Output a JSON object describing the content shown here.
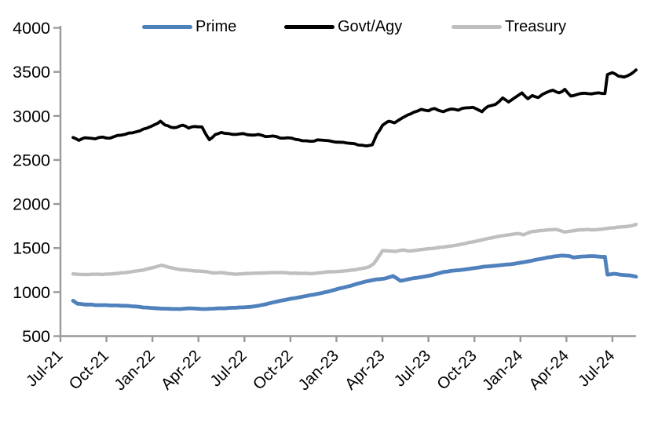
{
  "chart_data": {
    "type": "line",
    "title": "",
    "xlabel": "",
    "ylabel": "",
    "x_unit": "month index from Jul-21 (0) to Sep-24 (38), quarterly ticks",
    "x_tick_labels": [
      "Jul-21",
      "Oct-21",
      "Jan-22",
      "Apr-22",
      "Jul-22",
      "Oct-22",
      "Jan-23",
      "Apr-23",
      "Jul-23",
      "Oct-23",
      "Jan-24",
      "Apr-24",
      "Jul-24"
    ],
    "y_axis": {
      "min": 500,
      "max": 4000,
      "step": 500,
      "tick_values": [
        4000,
        3500,
        3000,
        2500,
        2000,
        1500,
        1000,
        500
      ],
      "tick_labels": [
        "4000",
        "3500",
        "3000",
        "2500",
        "2000",
        "1500",
        "1000",
        "500"
      ]
    },
    "layout": {
      "legend_position": "top",
      "grid": false,
      "axis_color": "#9a9a9a",
      "background": "#ffffff"
    },
    "series": [
      {
        "name": "Prime",
        "color": "#4f81bd",
        "stroke_width": 4.8,
        "noise": 3.2,
        "points": [
          [
            0,
            902
          ],
          [
            0.3,
            868
          ],
          [
            1,
            858
          ],
          [
            1.5,
            852
          ],
          [
            2,
            852
          ],
          [
            2.5,
            848
          ],
          [
            3,
            848
          ],
          [
            3.5,
            845
          ],
          [
            4,
            838
          ],
          [
            4.5,
            832
          ],
          [
            5,
            824
          ],
          [
            5.5,
            818
          ],
          [
            6,
            812
          ],
          [
            6.5,
            810
          ],
          [
            7,
            808
          ],
          [
            7.5,
            812
          ],
          [
            8,
            815
          ],
          [
            8.5,
            810
          ],
          [
            9,
            808
          ],
          [
            9.5,
            812
          ],
          [
            10,
            816
          ],
          [
            10.5,
            820
          ],
          [
            11,
            822
          ],
          [
            11.5,
            826
          ],
          [
            12,
            832
          ],
          [
            12.5,
            845
          ],
          [
            13,
            862
          ],
          [
            13.5,
            882
          ],
          [
            14,
            902
          ],
          [
            14.5,
            918
          ],
          [
            15,
            932
          ],
          [
            15.5,
            948
          ],
          [
            16,
            965
          ],
          [
            16.5,
            980
          ],
          [
            17,
            998
          ],
          [
            17.5,
            1018
          ],
          [
            18,
            1042
          ],
          [
            18.5,
            1062
          ],
          [
            19,
            1085
          ],
          [
            19.5,
            1108
          ],
          [
            20,
            1128
          ],
          [
            20.5,
            1145
          ],
          [
            21,
            1152
          ],
          [
            21.6,
            1182
          ],
          [
            22.1,
            1128
          ],
          [
            22.6,
            1145
          ],
          [
            23,
            1158
          ],
          [
            23.5,
            1170
          ],
          [
            24,
            1185
          ],
          [
            24.5,
            1205
          ],
          [
            25,
            1228
          ],
          [
            25.5,
            1240
          ],
          [
            26,
            1248
          ],
          [
            26.5,
            1258
          ],
          [
            27,
            1270
          ],
          [
            27.5,
            1282
          ],
          [
            28,
            1292
          ],
          [
            28.5,
            1300
          ],
          [
            29,
            1308
          ],
          [
            29.5,
            1315
          ],
          [
            30,
            1328
          ],
          [
            30.5,
            1342
          ],
          [
            31,
            1358
          ],
          [
            31.5,
            1375
          ],
          [
            32,
            1392
          ],
          [
            32.5,
            1405
          ],
          [
            33,
            1415
          ],
          [
            33.5,
            1408
          ],
          [
            33.8,
            1392
          ],
          [
            34.2,
            1400
          ],
          [
            34.6,
            1405
          ],
          [
            35,
            1408
          ],
          [
            35.5,
            1402
          ],
          [
            35.9,
            1400
          ],
          [
            36.07,
            1198
          ],
          [
            36.5,
            1208
          ],
          [
            36.9,
            1198
          ],
          [
            37.3,
            1192
          ],
          [
            37.7,
            1186
          ],
          [
            38,
            1175
          ]
        ]
      },
      {
        "name": "Govt/Agy",
        "color": "#000000",
        "stroke_width": 3.8,
        "noise": 8,
        "points": [
          [
            0,
            2755
          ],
          [
            0.4,
            2722
          ],
          [
            0.8,
            2752
          ],
          [
            1.5,
            2740
          ],
          [
            2,
            2760
          ],
          [
            2.5,
            2748
          ],
          [
            3,
            2778
          ],
          [
            3.5,
            2790
          ],
          [
            4,
            2808
          ],
          [
            4.5,
            2830
          ],
          [
            5,
            2862
          ],
          [
            5.5,
            2900
          ],
          [
            5.9,
            2940
          ],
          [
            6.2,
            2898
          ],
          [
            6.6,
            2872
          ],
          [
            7,
            2870
          ],
          [
            7.4,
            2895
          ],
          [
            7.8,
            2862
          ],
          [
            8.2,
            2880
          ],
          [
            8.7,
            2875
          ],
          [
            9.2,
            2730
          ],
          [
            9.6,
            2788
          ],
          [
            10,
            2812
          ],
          [
            10.5,
            2800
          ],
          [
            11,
            2790
          ],
          [
            11.5,
            2800
          ],
          [
            12,
            2783
          ],
          [
            12.5,
            2790
          ],
          [
            13,
            2765
          ],
          [
            13.5,
            2772
          ],
          [
            14,
            2748
          ],
          [
            14.5,
            2752
          ],
          [
            15,
            2735
          ],
          [
            15.5,
            2718
          ],
          [
            16,
            2712
          ],
          [
            16.5,
            2728
          ],
          [
            17,
            2722
          ],
          [
            17.5,
            2710
          ],
          [
            18,
            2702
          ],
          [
            18.5,
            2692
          ],
          [
            19,
            2685
          ],
          [
            19.5,
            2668
          ],
          [
            19.8,
            2660
          ],
          [
            20.2,
            2672
          ],
          [
            20.5,
            2790
          ],
          [
            20.9,
            2895
          ],
          [
            21.3,
            2940
          ],
          [
            21.7,
            2922
          ],
          [
            22.2,
            2975
          ],
          [
            22.6,
            3012
          ],
          [
            23,
            3042
          ],
          [
            23.5,
            3075
          ],
          [
            24,
            3058
          ],
          [
            24.4,
            3085
          ],
          [
            25,
            3048
          ],
          [
            25.5,
            3078
          ],
          [
            26,
            3065
          ],
          [
            26.5,
            3092
          ],
          [
            27,
            3098
          ],
          [
            27.6,
            3048
          ],
          [
            28,
            3108
          ],
          [
            28.5,
            3130
          ],
          [
            29,
            3205
          ],
          [
            29.4,
            3158
          ],
          [
            30,
            3228
          ],
          [
            30.3,
            3262
          ],
          [
            30.7,
            3195
          ],
          [
            31,
            3232
          ],
          [
            31.4,
            3208
          ],
          [
            32,
            3270
          ],
          [
            32.4,
            3292
          ],
          [
            32.8,
            3262
          ],
          [
            33.2,
            3302
          ],
          [
            33.6,
            3225
          ],
          [
            34,
            3242
          ],
          [
            34.5,
            3258
          ],
          [
            35,
            3250
          ],
          [
            35.5,
            3262
          ],
          [
            35.9,
            3255
          ],
          [
            36.07,
            3470
          ],
          [
            36.4,
            3492
          ],
          [
            36.8,
            3452
          ],
          [
            37.2,
            3442
          ],
          [
            37.6,
            3470
          ],
          [
            38,
            3522
          ]
        ]
      },
      {
        "name": "Treasury",
        "color": "#bfbfbf",
        "stroke_width": 4.4,
        "noise": 4,
        "points": [
          [
            0,
            1206
          ],
          [
            0.5,
            1200
          ],
          [
            1,
            1198
          ],
          [
            1.5,
            1202
          ],
          [
            2,
            1200
          ],
          [
            2.5,
            1205
          ],
          [
            3,
            1212
          ],
          [
            3.5,
            1220
          ],
          [
            4,
            1232
          ],
          [
            4.5,
            1245
          ],
          [
            5,
            1262
          ],
          [
            5.5,
            1282
          ],
          [
            6,
            1305
          ],
          [
            6.4,
            1285
          ],
          [
            7,
            1262
          ],
          [
            7.5,
            1252
          ],
          [
            8,
            1245
          ],
          [
            8.5,
            1238
          ],
          [
            9,
            1232
          ],
          [
            9.4,
            1218
          ],
          [
            10,
            1222
          ],
          [
            10.5,
            1210
          ],
          [
            11,
            1202
          ],
          [
            11.5,
            1208
          ],
          [
            12,
            1212
          ],
          [
            12.5,
            1215
          ],
          [
            13,
            1218
          ],
          [
            13.5,
            1222
          ],
          [
            14,
            1222
          ],
          [
            14.5,
            1218
          ],
          [
            15,
            1215
          ],
          [
            15.5,
            1212
          ],
          [
            16,
            1210
          ],
          [
            16.5,
            1218
          ],
          [
            17,
            1226
          ],
          [
            17.5,
            1230
          ],
          [
            18,
            1236
          ],
          [
            18.5,
            1242
          ],
          [
            19,
            1252
          ],
          [
            19.5,
            1268
          ],
          [
            20,
            1288
          ],
          [
            20.3,
            1322
          ],
          [
            20.9,
            1472
          ],
          [
            21.3,
            1468
          ],
          [
            21.8,
            1462
          ],
          [
            22.3,
            1478
          ],
          [
            22.7,
            1465
          ],
          [
            23,
            1472
          ],
          [
            23.5,
            1482
          ],
          [
            24,
            1492
          ],
          [
            24.5,
            1500
          ],
          [
            25,
            1510
          ],
          [
            25.5,
            1522
          ],
          [
            26,
            1536
          ],
          [
            26.5,
            1552
          ],
          [
            27,
            1570
          ],
          [
            27.5,
            1588
          ],
          [
            28,
            1608
          ],
          [
            28.5,
            1625
          ],
          [
            29,
            1640
          ],
          [
            29.5,
            1652
          ],
          [
            30,
            1665
          ],
          [
            30.4,
            1650
          ],
          [
            31,
            1688
          ],
          [
            31.5,
            1698
          ],
          [
            32,
            1706
          ],
          [
            32.6,
            1712
          ],
          [
            33.2,
            1682
          ],
          [
            33.7,
            1695
          ],
          [
            34.2,
            1708
          ],
          [
            34.7,
            1712
          ],
          [
            35.2,
            1706
          ],
          [
            36,
            1722
          ],
          [
            36.5,
            1730
          ],
          [
            37,
            1740
          ],
          [
            37.5,
            1748
          ],
          [
            38,
            1768
          ]
        ]
      }
    ]
  }
}
